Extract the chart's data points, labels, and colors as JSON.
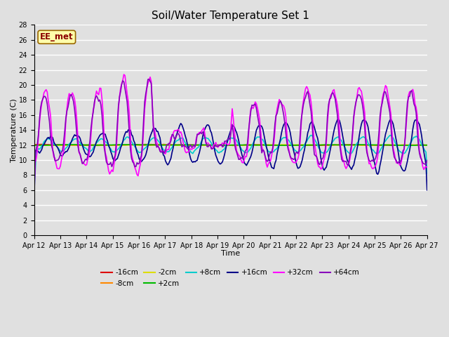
{
  "title": "Soil/Water Temperature Set 1",
  "xlabel": "Time",
  "ylabel": "Temperature (C)",
  "annotation": "EE_met",
  "ylim": [
    0,
    28
  ],
  "yticks": [
    0,
    2,
    4,
    6,
    8,
    10,
    12,
    14,
    16,
    18,
    20,
    22,
    24,
    26,
    28
  ],
  "date_labels": [
    "Apr 12",
    "Apr 13",
    "Apr 14",
    "Apr 15",
    "Apr 16",
    "Apr 17",
    "Apr 18",
    "Apr 19",
    "Apr 20",
    "Apr 21",
    "Apr 22",
    "Apr 23",
    "Apr 24",
    "Apr 25",
    "Apr 26",
    "Apr 27"
  ],
  "series_order": [
    "-16cm",
    "-8cm",
    "-2cm",
    "+2cm",
    "+8cm",
    "+16cm",
    "+32cm",
    "+64cm"
  ],
  "series": {
    "-16cm": {
      "color": "#dd0000"
    },
    "-8cm": {
      "color": "#ff8800"
    },
    "-2cm": {
      "color": "#dddd00"
    },
    "+2cm": {
      "color": "#00bb00"
    },
    "+8cm": {
      "color": "#00cccc"
    },
    "+16cm": {
      "color": "#000088"
    },
    "+32cm": {
      "color": "#ff00ff"
    },
    "+64cm": {
      "color": "#8800bb"
    }
  },
  "bg_color": "#e0e0e0",
  "lw": 1.2
}
